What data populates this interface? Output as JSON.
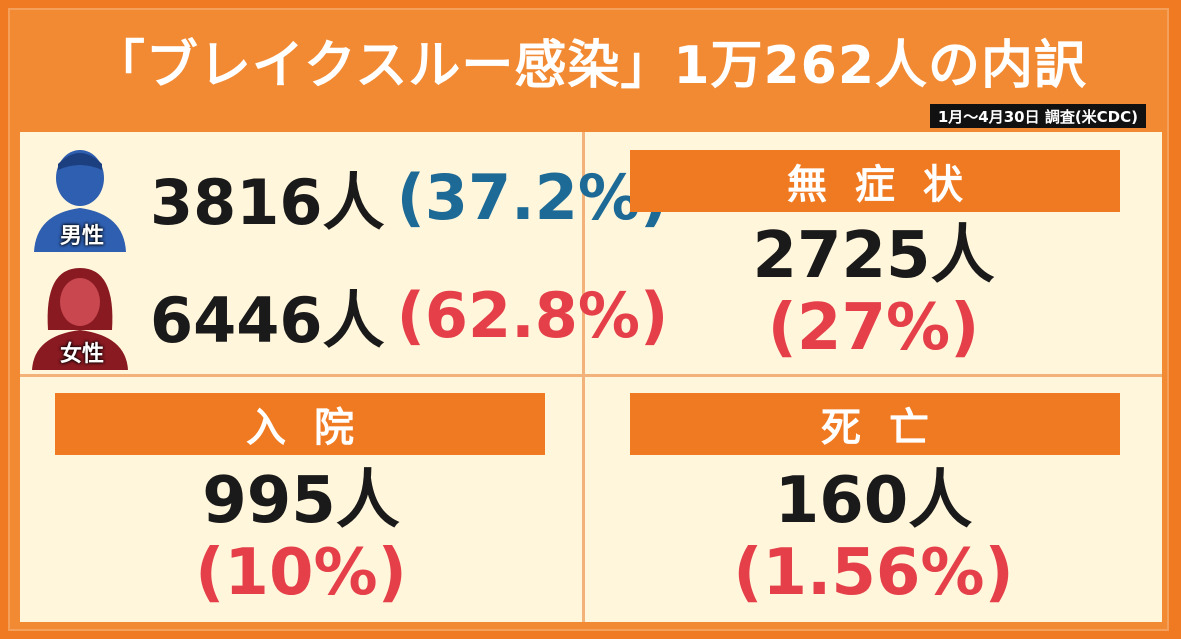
{
  "title": "「ブレイクスルー感染」1万262人の内訳",
  "source": "1月～4月30日 調査(米CDC)",
  "gender": {
    "male": {
      "label": "男性",
      "count": "3816人",
      "pct": "(37.2%)",
      "color": "#1e6a96"
    },
    "female": {
      "label": "女性",
      "count": "6446人",
      "pct": "(62.8%)",
      "color": "#e5404a"
    }
  },
  "asymptomatic": {
    "label": "無症状",
    "count": "2725人",
    "pct": "(27%)"
  },
  "hospitalized": {
    "label": "入院",
    "count": "995人",
    "pct": "(10%)"
  },
  "death": {
    "label": "死亡",
    "count": "160人",
    "pct": "(1.56%)"
  }
}
